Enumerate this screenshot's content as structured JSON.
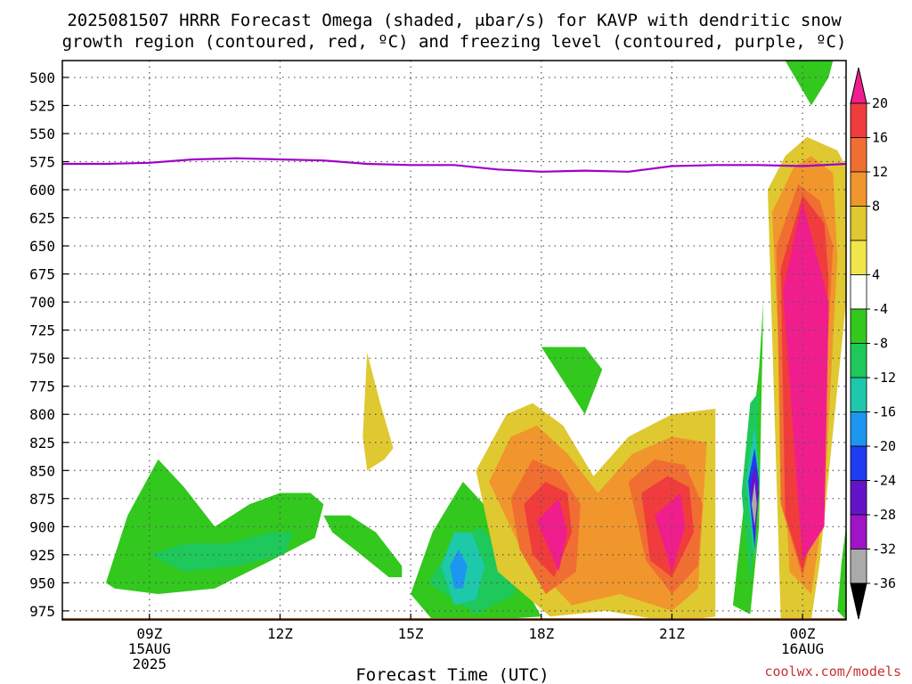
{
  "title": {
    "line1": "2025081507 HRRR Forecast Omega (shaded, μbar/s) for KAVP with dendritic snow",
    "line2": "growth region (contoured, red, ºC) and freezing level (contoured, purple, ºC)"
  },
  "x_axis_title": "Forecast Time (UTC)",
  "credit": "coolwx.com/models",
  "colors": {
    "freezing_line": "#a000c8",
    "ground": "#a0522d",
    "grid": "#555555",
    "credit": "#c83232"
  },
  "chart_data": {
    "type": "heatmap",
    "title": "2025081507 HRRR Forecast Omega (shaded, μbar/s) for KAVP with dendritic snow growth region (contoured, red, ºC) and freezing level (contoured, purple, ºC)",
    "xlabel": "Forecast Time (UTC)",
    "ylabel": "",
    "x_unit": "hours after 2025-08-15 07Z",
    "xlim": [
      7,
      25
    ],
    "y_axis": {
      "scale": "pressure",
      "unit": "mb",
      "range": [
        485,
        983
      ],
      "ticks": [
        500,
        525,
        550,
        575,
        600,
        625,
        650,
        675,
        700,
        725,
        750,
        775,
        800,
        825,
        850,
        875,
        900,
        925,
        950,
        975
      ]
    },
    "x_ticks": [
      {
        "x": 9,
        "lines": [
          "09Z",
          "15AUG",
          "2025"
        ]
      },
      {
        "x": 12,
        "lines": [
          "12Z"
        ]
      },
      {
        "x": 15,
        "lines": [
          "15Z"
        ]
      },
      {
        "x": 18,
        "lines": [
          "18Z"
        ]
      },
      {
        "x": 21,
        "lines": [
          "21Z"
        ]
      },
      {
        "x": 24,
        "lines": [
          "00Z",
          "16AUG"
        ]
      }
    ],
    "grid": true,
    "colorbar": {
      "labels": [
        20,
        16,
        12,
        8,
        4,
        -4,
        -8,
        -12,
        -16,
        -20,
        -24,
        -28,
        -32,
        -36
      ],
      "bins": [
        {
          "range": ">20",
          "color": "#f01e8c"
        },
        {
          "range": "16 to 20",
          "color": "#f03c3c"
        },
        {
          "range": "12 to 16",
          "color": "#f06e32"
        },
        {
          "range": "8 to 12",
          "color": "#f0962d"
        },
        {
          "range": "4 to 8",
          "color": "#e0c830"
        },
        {
          "range": "0 to 4",
          "color": "#f0e64b"
        },
        {
          "range": "-4 to 4",
          "color": "#ffffff"
        },
        {
          "range": "-8 to -4",
          "color": "#32c81e"
        },
        {
          "range": "-12 to -8",
          "color": "#1ec85a"
        },
        {
          "range": "-16 to -12",
          "color": "#1ec8aa"
        },
        {
          "range": "-20 to -16",
          "color": "#1e96f0"
        },
        {
          "range": "-24 to -20",
          "color": "#1e3cf0"
        },
        {
          "range": "-28 to -24",
          "color": "#6414c8"
        },
        {
          "range": "-32 to -28",
          "color": "#a014c8"
        },
        {
          "range": "-36 to -32",
          "color": "#aaaaaa"
        },
        {
          "range": "<-36",
          "color": "#000000"
        }
      ]
    },
    "freezing_level": {
      "name": "freezing level",
      "x": [
        7,
        8,
        9,
        10,
        11,
        12,
        13,
        14,
        15,
        16,
        17,
        18,
        19,
        20,
        21,
        22,
        23,
        24,
        25
      ],
      "y": [
        577,
        577,
        576,
        573,
        572,
        573,
        574,
        577,
        578,
        578,
        582,
        584,
        583,
        584,
        579,
        578,
        578,
        579,
        577
      ]
    },
    "omega_regions": [
      {
        "value": -6,
        "x": [
          8.0,
          8.5,
          9.2,
          9.8,
          10.5,
          11.3,
          12.0,
          12.7,
          13.0,
          12.8,
          11.8,
          10.5,
          9.2,
          8.2,
          8.0
        ],
        "y": [
          950,
          890,
          840,
          865,
          900,
          880,
          870,
          870,
          880,
          910,
          930,
          955,
          960,
          955,
          950
        ]
      },
      {
        "value": -10,
        "x": [
          9.0,
          9.8,
          10.8,
          11.8,
          12.3,
          12.1,
          11.0,
          9.8,
          9.0
        ],
        "y": [
          925,
          915,
          915,
          905,
          905,
          925,
          935,
          940,
          925
        ]
      },
      {
        "value": -6,
        "x": [
          13.0,
          13.6,
          14.2,
          14.8,
          14.8,
          14.5,
          13.7,
          13.2,
          13.0
        ],
        "y": [
          890,
          890,
          905,
          935,
          945,
          945,
          920,
          905,
          890
        ]
      },
      {
        "value": 6,
        "x": [
          13.9,
          14.0,
          14.3,
          14.6,
          14.4,
          14.0,
          13.9
        ],
        "y": [
          820,
          745,
          790,
          830,
          840,
          850,
          820
        ]
      },
      {
        "value": -6,
        "x": [
          15.0,
          15.5,
          16.2,
          16.8,
          17.5,
          18.0,
          16.8,
          15.5,
          15.0
        ],
        "y": [
          960,
          905,
          860,
          885,
          945,
          980,
          983,
          983,
          960
        ]
      },
      {
        "value": -10,
        "x": [
          15.4,
          15.9,
          16.6,
          17.3,
          17.4,
          16.5,
          15.4
        ],
        "y": [
          950,
          920,
          900,
          930,
          960,
          978,
          950
        ]
      },
      {
        "value": -14,
        "x": [
          15.7,
          16.0,
          16.4,
          16.7,
          16.5,
          16.0,
          15.7
        ],
        "y": [
          935,
          905,
          905,
          935,
          965,
          970,
          935
        ]
      },
      {
        "value": -18,
        "x": [
          15.9,
          16.1,
          16.3,
          16.2,
          16.0,
          15.9
        ],
        "y": [
          935,
          920,
          935,
          955,
          955,
          935
        ]
      },
      {
        "value": -6,
        "x": [
          18.0,
          19.0,
          19.4,
          19.0,
          18.0
        ],
        "y": [
          740,
          740,
          760,
          800,
          740
        ]
      },
      {
        "value": 6,
        "x": [
          16.5,
          17.2,
          17.8,
          18.5,
          19.2,
          20.0,
          21.0,
          22.0,
          22.0,
          21.0,
          19.5,
          18.2,
          17.0,
          16.5
        ],
        "y": [
          850,
          800,
          790,
          810,
          855,
          820,
          800,
          795,
          980,
          985,
          975,
          980,
          940,
          850
        ]
      },
      {
        "value": 10,
        "x": [
          16.8,
          17.3,
          17.9,
          18.6,
          19.3,
          20.1,
          21.0,
          21.8,
          21.6,
          21.0,
          19.8,
          18.7,
          17.6,
          16.8
        ],
        "y": [
          860,
          820,
          810,
          835,
          870,
          835,
          820,
          825,
          955,
          975,
          960,
          970,
          925,
          860
        ]
      },
      {
        "value": 14,
        "x": [
          17.3,
          17.8,
          18.4,
          18.9,
          18.8,
          18.1,
          17.5,
          17.3
        ],
        "y": [
          875,
          840,
          850,
          880,
          940,
          960,
          920,
          875
        ]
      },
      {
        "value": 14,
        "x": [
          20.0,
          20.6,
          21.3,
          21.7,
          21.6,
          21.0,
          20.4,
          20.0
        ],
        "y": [
          860,
          840,
          845,
          880,
          935,
          960,
          930,
          860
        ]
      },
      {
        "value": 18,
        "x": [
          17.6,
          18.1,
          18.6,
          18.7,
          18.3,
          17.8,
          17.6
        ],
        "y": [
          880,
          860,
          870,
          905,
          945,
          925,
          880
        ]
      },
      {
        "value": 18,
        "x": [
          20.3,
          20.9,
          21.4,
          21.5,
          21.0,
          20.5,
          20.3
        ],
        "y": [
          870,
          855,
          865,
          905,
          945,
          930,
          870
        ]
      },
      {
        "value": 22,
        "x": [
          17.9,
          18.4,
          18.6,
          18.4,
          17.9
        ],
        "y": [
          895,
          875,
          905,
          940,
          895
        ]
      },
      {
        "value": 22,
        "x": [
          20.6,
          21.2,
          21.3,
          21.0,
          20.6
        ],
        "y": [
          890,
          870,
          900,
          940,
          890
        ]
      },
      {
        "value": -6,
        "x": [
          22.4,
          22.8,
          23.0,
          23.1,
          23.0,
          22.8,
          22.4
        ],
        "y": [
          970,
          830,
          760,
          700,
          900,
          978,
          970
        ]
      },
      {
        "value": -10,
        "x": [
          22.6,
          22.8,
          23.0,
          22.9,
          22.8,
          22.6
        ],
        "y": [
          870,
          790,
          780,
          900,
          950,
          870
        ]
      },
      {
        "value": -14,
        "x": [
          22.7,
          22.9,
          23.0,
          22.9,
          22.7
        ],
        "y": [
          860,
          810,
          850,
          930,
          860
        ]
      },
      {
        "value": -20,
        "x": [
          22.75,
          22.9,
          23.0,
          22.9,
          22.75
        ],
        "y": [
          860,
          830,
          860,
          920,
          860
        ]
      },
      {
        "value": -26,
        "x": [
          22.8,
          22.9,
          23.0,
          22.9,
          22.8
        ],
        "y": [
          865,
          845,
          870,
          910,
          865
        ]
      },
      {
        "value": -34,
        "x": [
          22.83,
          22.9,
          22.95,
          22.9,
          22.83
        ],
        "y": [
          880,
          860,
          880,
          900,
          880
        ]
      },
      {
        "value": -6,
        "x": [
          23.6,
          24.1,
          24.7,
          24.6,
          24.2,
          23.6
        ],
        "y": [
          485,
          485,
          485,
          500,
          525,
          485
        ]
      },
      {
        "value": 6,
        "x": [
          23.2,
          23.6,
          24.1,
          24.8,
          25.0,
          25.0,
          24.4,
          24.2,
          23.5,
          23.2
        ],
        "y": [
          600,
          570,
          553,
          565,
          580,
          700,
          930,
          983,
          983,
          600
        ]
      },
      {
        "value": 10,
        "x": [
          23.3,
          23.8,
          24.2,
          24.7,
          24.8,
          24.5,
          24.2,
          23.7,
          23.3
        ],
        "y": [
          620,
          580,
          570,
          585,
          660,
          880,
          960,
          940,
          620
        ]
      },
      {
        "value": 14,
        "x": [
          23.4,
          23.9,
          24.4,
          24.7,
          24.4,
          24.0,
          23.5,
          23.4
        ],
        "y": [
          650,
          595,
          610,
          650,
          880,
          945,
          880,
          650
        ]
      },
      {
        "value": 18,
        "x": [
          23.5,
          24.0,
          24.5,
          24.6,
          24.3,
          24.0,
          23.6,
          23.5
        ],
        "y": [
          670,
          605,
          630,
          680,
          890,
          940,
          890,
          670
        ]
      },
      {
        "value": 22,
        "x": [
          23.55,
          24.0,
          24.6,
          24.5,
          24.0,
          23.55
        ],
        "y": [
          690,
          610,
          700,
          900,
          930,
          690
        ]
      },
      {
        "value": -6,
        "x": [
          24.9,
          25.0,
          25.0,
          24.8,
          24.9
        ],
        "y": [
          930,
          900,
          983,
          975,
          930
        ]
      }
    ],
    "ground": {
      "name": "surface",
      "pressure": 983
    }
  }
}
